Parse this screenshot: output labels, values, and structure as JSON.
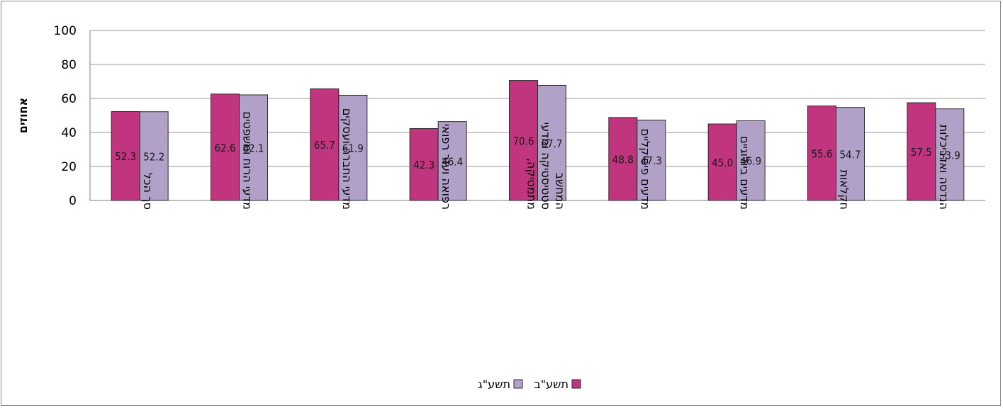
{
  "chart_data": {
    "type": "bar",
    "ylabel": "אחוזים",
    "ylim": [
      0,
      100
    ],
    "yticks": [
      0,
      20,
      40,
      60,
      80,
      100
    ],
    "grid": true,
    "legend_position": "bottom",
    "categories": [
      [
        "סך הכל"
      ],
      [
        "מדעי הרוח ומשפטים"
      ],
      [
        "מדעי החברה ועסקים"
      ],
      [
        "רפואה ועזר רפואי"
      ],
      [
        "מתמטיקה,",
        "סטטיסטיקה ומדעי",
        "המחשב"
      ],
      [
        "מדעים פיסיקליים"
      ],
      [
        "מדעים ביולוגיים"
      ],
      [
        "חקלאות"
      ],
      [
        "הנדסה ואדריכלות"
      ]
    ],
    "series": [
      {
        "name": "תשע\"ב",
        "color": "#c0357e",
        "values": [
          52.3,
          62.6,
          65.7,
          42.3,
          70.6,
          48.8,
          45.0,
          55.6,
          57.5
        ],
        "labels": [
          "52.3",
          "62.6",
          "65.7",
          "42.3",
          "70.6",
          "48.8",
          "45.0",
          "55.6",
          "57.5"
        ]
      },
      {
        "name": "תשע\"ג",
        "color": "#b1a0c7",
        "values": [
          52.2,
          62.1,
          61.9,
          46.4,
          67.7,
          47.3,
          46.9,
          54.7,
          53.9
        ],
        "labels": [
          "52.2",
          "62.1",
          "61.9",
          "46.4",
          "67.7",
          "47.3",
          "46.9",
          "54.7",
          "53.9"
        ]
      }
    ]
  }
}
